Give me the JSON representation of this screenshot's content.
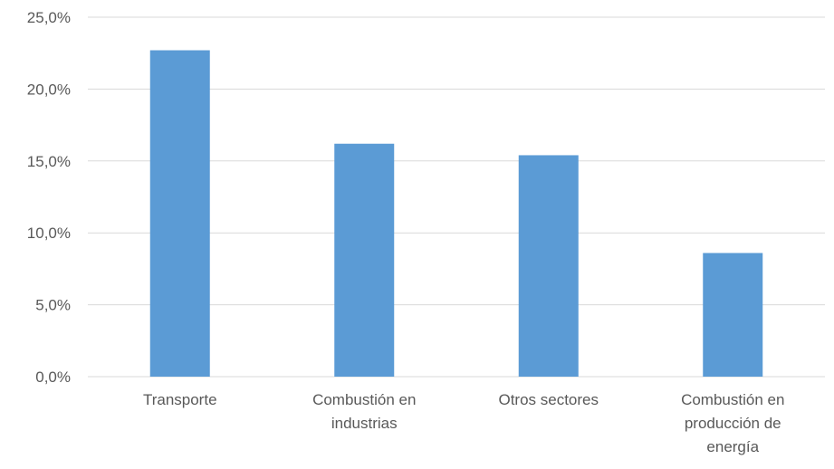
{
  "chart_data": {
    "type": "bar",
    "categories": [
      [
        "Transporte"
      ],
      [
        "Combustión en",
        "industrias"
      ],
      [
        "Otros sectores"
      ],
      [
        "Combustión en",
        "producción de",
        "energía"
      ]
    ],
    "values": [
      22.7,
      16.2,
      15.4,
      8.6
    ],
    "ylim": [
      0,
      25
    ],
    "yticks": [
      "0,0%",
      "5,0%",
      "10,0%",
      "15,0%",
      "20,0%",
      "25,0%"
    ],
    "grid": true,
    "legend": "none",
    "title": "",
    "xlabel": "",
    "ylabel": "",
    "colors": {
      "bar": "#5b9bd5",
      "grid": "#d9d9d9",
      "text": "#595959"
    }
  }
}
